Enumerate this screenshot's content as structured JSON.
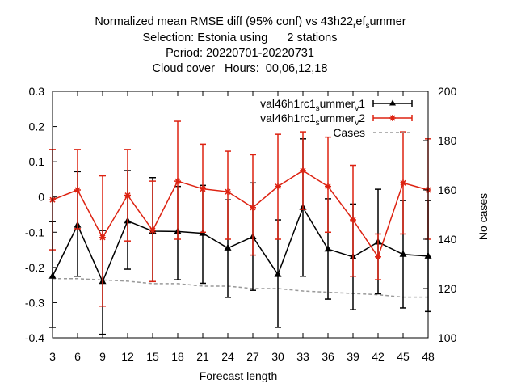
{
  "chart_data": {
    "type": "line",
    "title": {
      "line1": "Normalized mean RMSE diff (95% conf) vs 43h22",
      "line1_sub1": "r",
      "line1_mid": "ef",
      "line1_sub2": "s",
      "line1_tail": "ummer",
      "line2": "Selection: Estonia using      2 stations",
      "line3": "Period: 20220701-20220731",
      "line4": "Cloud cover   Hours:  00,06,12,18"
    },
    "xlabel": "Forecast length",
    "ylabel_right": "No cases",
    "x": [
      3,
      6,
      9,
      12,
      15,
      18,
      21,
      24,
      27,
      30,
      33,
      36,
      39,
      42,
      45,
      48
    ],
    "ylim": [
      -0.4,
      0.3
    ],
    "y_ticks": [
      "0.3",
      "0.2",
      "0.1",
      "0",
      "-0.1",
      "-0.2",
      "-0.3",
      "-0.4"
    ],
    "y2lim": [
      100,
      200
    ],
    "y2_ticks": [
      "200",
      "180",
      "160",
      "140",
      "120",
      "100"
    ],
    "grid": false,
    "legend_position": "top-right",
    "series": [
      {
        "name": "val46h1rc1",
        "name_sub1": "s",
        "name_mid": "ummer",
        "name_sub2": "v",
        "name_tail": "1",
        "color": "#000000",
        "marker": "triangle",
        "values": [
          -0.225,
          -0.08,
          -0.24,
          -0.068,
          -0.097,
          -0.098,
          -0.103,
          -0.145,
          -0.113,
          -0.22,
          -0.03,
          -0.148,
          -0.17,
          -0.128,
          -0.163,
          -0.168
        ],
        "lower": [
          -0.37,
          -0.225,
          -0.39,
          -0.205,
          -0.24,
          -0.235,
          -0.245,
          -0.285,
          -0.265,
          -0.37,
          -0.225,
          -0.29,
          -0.32,
          -0.275,
          -0.315,
          -0.325
        ],
        "upper": [
          -0.07,
          0.072,
          -0.095,
          0.075,
          0.055,
          0.03,
          0.033,
          -0.008,
          0.04,
          -0.065,
          0.165,
          -0.005,
          -0.02,
          0.022,
          -0.01,
          -0.01
        ]
      },
      {
        "name": "val46h1rc1",
        "name_sub1": "s",
        "name_mid": "ummer",
        "name_sub2": "v",
        "name_tail": "2",
        "color": "#dd2211",
        "marker": "star",
        "values": [
          -0.008,
          0.02,
          -0.115,
          0.005,
          -0.095,
          0.045,
          0.023,
          0.015,
          -0.03,
          0.03,
          0.075,
          0.03,
          -0.065,
          -0.17,
          0.04,
          0.02
        ],
        "lower": [
          -0.15,
          -0.09,
          -0.31,
          -0.125,
          -0.24,
          -0.12,
          -0.1,
          -0.12,
          -0.165,
          -0.12,
          -0.035,
          -0.1,
          -0.225,
          -0.235,
          -0.105,
          -0.12
        ],
        "upper": [
          0.135,
          0.135,
          0.06,
          0.135,
          0.045,
          0.215,
          0.15,
          0.13,
          0.12,
          0.178,
          0.185,
          0.17,
          0.09,
          -0.105,
          0.185,
          0.165
        ]
      },
      {
        "name": "Cases",
        "color": "#999999",
        "dash": true,
        "axis": "y2",
        "values": [
          124,
          124,
          123.5,
          123,
          122,
          122,
          121,
          121,
          120,
          120,
          119,
          118.5,
          118,
          117.5,
          116.5,
          116.5
        ]
      }
    ]
  }
}
